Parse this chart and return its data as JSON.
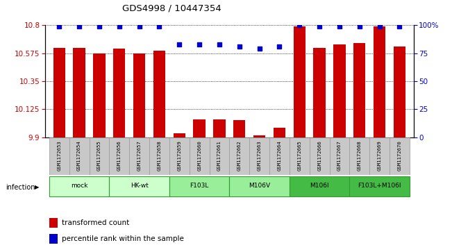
{
  "title": "GDS4998 / 10447354",
  "samples": [
    "GSM1172653",
    "GSM1172654",
    "GSM1172655",
    "GSM1172656",
    "GSM1172657",
    "GSM1172658",
    "GSM1172659",
    "GSM1172660",
    "GSM1172661",
    "GSM1172662",
    "GSM1172663",
    "GSM1172664",
    "GSM1172665",
    "GSM1172666",
    "GSM1172667",
    "GSM1172668",
    "GSM1172669",
    "GSM1172670"
  ],
  "bar_values": [
    10.62,
    10.62,
    10.575,
    10.615,
    10.575,
    10.595,
    9.935,
    10.045,
    10.045,
    10.04,
    9.915,
    9.975,
    10.79,
    10.62,
    10.645,
    10.655,
    10.79,
    10.63
  ],
  "percentile_dots_y": [
    99,
    99,
    99,
    99,
    99,
    99,
    83,
    83,
    83,
    81,
    79,
    81,
    100,
    99,
    99,
    99,
    99,
    99
  ],
  "groups": [
    {
      "label": "mock",
      "start": 0,
      "end": 2,
      "color": "#ccffcc"
    },
    {
      "label": "HK-wt",
      "start": 3,
      "end": 5,
      "color": "#ccffcc"
    },
    {
      "label": "F103L",
      "start": 6,
      "end": 8,
      "color": "#99ee99"
    },
    {
      "label": "M106V",
      "start": 9,
      "end": 11,
      "color": "#99ee99"
    },
    {
      "label": "M106I",
      "start": 12,
      "end": 14,
      "color": "#44bb44"
    },
    {
      "label": "F103L+M106I",
      "start": 15,
      "end": 17,
      "color": "#44bb44"
    }
  ],
  "ylim_left": [
    9.9,
    10.8
  ],
  "ylim_right": [
    0,
    100
  ],
  "yticks_left": [
    9.9,
    10.125,
    10.35,
    10.575,
    10.8
  ],
  "yticks_right": [
    0,
    25,
    50,
    75,
    100
  ],
  "bar_color": "#cc0000",
  "dot_color": "#0000cc",
  "bar_width": 0.6,
  "bg_color": "#ffffff",
  "gray_box": "#c8c8c8",
  "gray_border": "#999999"
}
